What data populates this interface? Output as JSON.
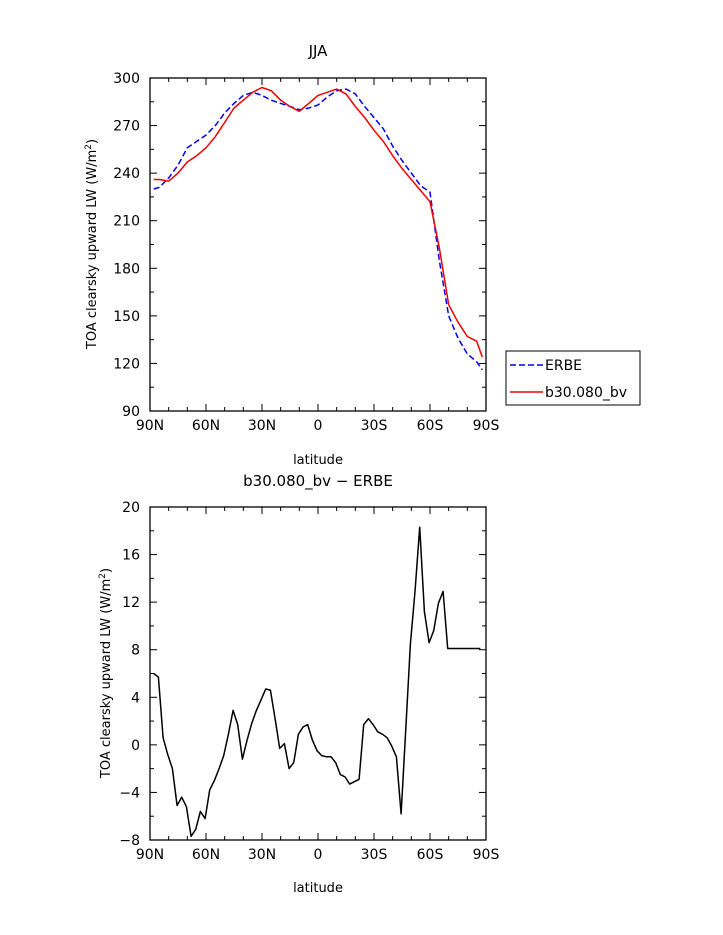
{
  "chart_data": [
    {
      "type": "line",
      "title": "JJA",
      "xlabel": "latitude",
      "ylabel": "TOA clearsky upward LW (W/m²)",
      "ylabel_main": "TOA clearsky upward LW (W/m",
      "ylabel_sup": "2",
      "ylabel_close": ")",
      "xlim": [
        90,
        -90
      ],
      "ylim": [
        90,
        300
      ],
      "xticks": [
        90,
        60,
        30,
        0,
        -30,
        -60,
        -90
      ],
      "xtick_labels": [
        "90N",
        "60N",
        "30N",
        "0",
        "30S",
        "60S",
        "90S"
      ],
      "yticks": [
        90,
        120,
        150,
        180,
        210,
        240,
        270,
        300
      ],
      "ytick_labels": [
        "90",
        "120",
        "150",
        "180",
        "210",
        "240",
        "270",
        "300"
      ],
      "legend_position": "right",
      "series": [
        {
          "name": "ERBE",
          "color": "#0000ee",
          "dash": "dashed",
          "x": [
            88,
            85,
            80,
            75,
            70,
            65,
            60,
            55,
            50,
            45,
            40,
            35,
            30,
            25,
            20,
            15,
            10,
            5,
            0,
            -5,
            -10,
            -15,
            -20,
            -25,
            -30,
            -35,
            -40,
            -45,
            -50,
            -55,
            -60,
            -65,
            -70,
            -75,
            -80,
            -85,
            -88
          ],
          "y": [
            230,
            231,
            237,
            245,
            256,
            260,
            264,
            270,
            278,
            284,
            289,
            291,
            289,
            286,
            284,
            282,
            280,
            281,
            283,
            288,
            292,
            293,
            290,
            282,
            275,
            268,
            257,
            248,
            240,
            232,
            228,
            185,
            150,
            136,
            126,
            121,
            116
          ]
        },
        {
          "name": "b30.080_bv",
          "color": "#ee0000",
          "dash": "solid",
          "x": [
            88,
            85,
            80,
            75,
            70,
            65,
            60,
            55,
            50,
            45,
            40,
            35,
            30,
            25,
            20,
            15,
            10,
            5,
            0,
            -5,
            -10,
            -15,
            -20,
            -25,
            -30,
            -35,
            -40,
            -45,
            -50,
            -55,
            -60,
            -65,
            -70,
            -75,
            -80,
            -85,
            -88
          ],
          "y": [
            236,
            236,
            235,
            240,
            247,
            251,
            256,
            263,
            272,
            281,
            286,
            291,
            294,
            292,
            286,
            282,
            279,
            284,
            289,
            291,
            293,
            290,
            282,
            275,
            267,
            260,
            251,
            243,
            236,
            229,
            222,
            193,
            157,
            146,
            137,
            134,
            124
          ]
        }
      ]
    },
    {
      "type": "line",
      "title": "b30.080_bv − ERBE",
      "xlabel": "latitude",
      "ylabel": "TOA clearsky upward LW (W/m²)",
      "ylabel_main": "TOA clearsky upward LW (W/m",
      "ylabel_sup": "2",
      "ylabel_close": ")",
      "xlim": [
        90,
        -90
      ],
      "ylim": [
        -8,
        20
      ],
      "xticks": [
        90,
        60,
        30,
        0,
        -30,
        -60,
        -90
      ],
      "xtick_labels": [
        "90N",
        "60N",
        "30N",
        "0",
        "30S",
        "60S",
        "90S"
      ],
      "yticks": [
        -8,
        -4,
        0,
        4,
        8,
        12,
        16,
        20
      ],
      "ytick_labels": [
        "−8",
        "−4",
        "0",
        "4",
        "8",
        "12",
        "16",
        "20"
      ],
      "series": [
        {
          "color": "#000000",
          "dash": "solid",
          "x": [
            88,
            85.5,
            83,
            80.5,
            78,
            75.5,
            73,
            70.5,
            68,
            65.5,
            63,
            60.5,
            58,
            55.5,
            53,
            50.5,
            48,
            45.5,
            43,
            40.5,
            38,
            35.5,
            33,
            30.5,
            28,
            25.5,
            23,
            20.5,
            18,
            15.5,
            13,
            10.5,
            8,
            5.5,
            3,
            0.5,
            -2,
            -4.5,
            -7,
            -9.5,
            -12,
            -14.5,
            -17,
            -19.5,
            -22,
            -24.5,
            -27,
            -29.5,
            -32,
            -34.5,
            -37,
            -39.5,
            -42,
            -44.5,
            -47,
            -49.5,
            -52,
            -54.5,
            -57,
            -59.5,
            -62,
            -64.5,
            -67,
            -69.5,
            -72,
            -74.5,
            -77,
            -79.5,
            -82,
            -84.5,
            -87
          ],
          "y": [
            6.0,
            5.7,
            0.6,
            -0.8,
            -2.0,
            -5.1,
            -4.4,
            -5.2,
            -7.7,
            -7.1,
            -5.6,
            -6.2,
            -3.8,
            -3.0,
            -2.0,
            -0.9,
            0.9,
            2.9,
            1.7,
            -1.2,
            0.4,
            1.8,
            2.9,
            3.8,
            4.7,
            4.6,
            2.2,
            -0.3,
            0.1,
            -2.0,
            -1.5,
            0.9,
            1.5,
            1.7,
            0.4,
            -0.5,
            -0.9,
            -1.0,
            -1.0,
            -1.5,
            -2.5,
            -2.7,
            -3.3,
            -3.1,
            -2.9,
            1.7,
            2.2,
            1.7,
            1.1,
            0.9,
            0.6,
            -0.1,
            -1.0,
            -5.8,
            1.2,
            8.5,
            13.0,
            18.3,
            11.2,
            8.6,
            9.6,
            11.9,
            12.9,
            8.1,
            8.1,
            8.1,
            8.1,
            8.1,
            8.1,
            8.1,
            8.1
          ]
        }
      ]
    }
  ]
}
